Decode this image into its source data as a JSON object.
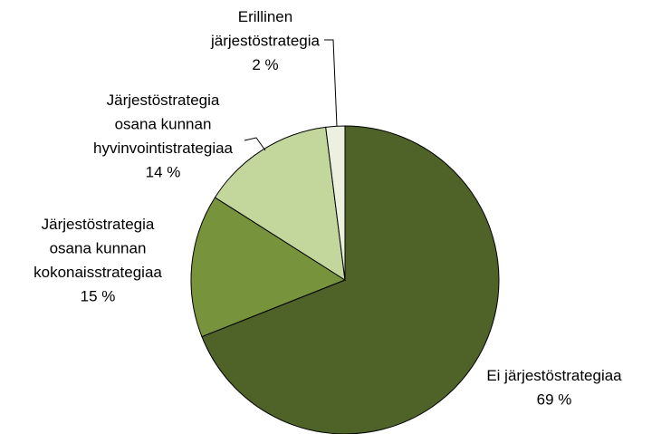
{
  "chart_data": {
    "type": "pie",
    "categories": [
      [
        "Ei järjestöstrategiaa"
      ],
      [
        "Järjestöstrategia",
        "osana kunnan",
        "kokonaisstrategiaa"
      ],
      [
        "Järjestöstrategia",
        "osana kunnan",
        "hyvinvointistrategiaa"
      ],
      [
        "Erillinen",
        "järjestöstrategia"
      ]
    ],
    "values": [
      69,
      15,
      14,
      2
    ],
    "value_labels": [
      "69 %",
      "15 %",
      "14 %",
      "2 %"
    ],
    "colors": [
      "#4f6228",
      "#77933c",
      "#c3d69b",
      "#ebf1de"
    ]
  }
}
